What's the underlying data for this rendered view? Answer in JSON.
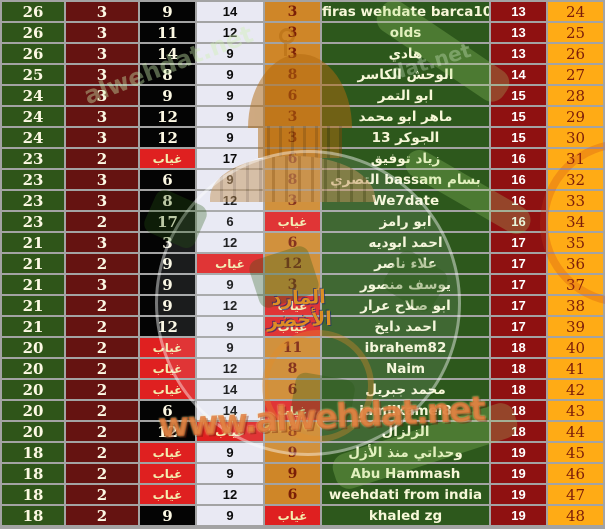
{
  "palette": {
    "row_green": "#2f5519",
    "maroon": "#651311",
    "black_col": "#040404",
    "lavender": "#e9e9f3",
    "orange_col": "#cf8628",
    "name_green": "#2d581c",
    "red_col": "#8f1111",
    "rank_orange": "#ffab15",
    "absent_red": "#df2020",
    "grid_gray": "#a3a3a3"
  },
  "watermark": {
    "site_url": "www.alwehdat.net",
    "slogan": "المارد الأخضر",
    "diagonal_text_1": "alwehdat.net",
    "diagonal_text_2": "dat.net"
  },
  "table": {
    "absent_label": "غياب",
    "rows": [
      {
        "points": "26",
        "s2": "3",
        "s3": "9",
        "s4": "14",
        "s5": "3",
        "player": "firas wehdate barca10",
        "s7": "13",
        "rank": "24"
      },
      {
        "points": "26",
        "s2": "3",
        "s3": "11",
        "s4": "12",
        "s5": "3",
        "player": "olds",
        "s7": "13",
        "rank": "25"
      },
      {
        "points": "26",
        "s2": "3",
        "s3": "14",
        "s4": "9",
        "s5": "3",
        "player": "هادي",
        "s7": "13",
        "rank": "26"
      },
      {
        "points": "25",
        "s2": "3",
        "s3": "8",
        "s4": "9",
        "s5": "8",
        "player": "الوحش الكاسر",
        "s7": "14",
        "rank": "27"
      },
      {
        "points": "24",
        "s2": "3",
        "s3": "9",
        "s4": "9",
        "s5": "6",
        "player": "ابو التمر",
        "s7": "15",
        "rank": "28"
      },
      {
        "points": "24",
        "s2": "3",
        "s3": "12",
        "s4": "9",
        "s5": "3",
        "player": "ماهر ابو محمد",
        "s7": "15",
        "rank": "29"
      },
      {
        "points": "24",
        "s2": "3",
        "s3": "12",
        "s4": "9",
        "s5": "3",
        "player": "الجوكر 13",
        "s7": "15",
        "rank": "30"
      },
      {
        "points": "23",
        "s2": "2",
        "s3": "غياب",
        "s4": "17",
        "s5": "6",
        "player": "زياد توفيق",
        "s7": "16",
        "rank": "31"
      },
      {
        "points": "23",
        "s2": "3",
        "s3": "6",
        "s4": "9",
        "s5": "8",
        "player": "التصري bassam بسام",
        "s7": "16",
        "rank": "32"
      },
      {
        "points": "23",
        "s2": "3",
        "s3": "8",
        "s4": "12",
        "s5": "3",
        "player": "We7date",
        "s7": "16",
        "rank": "33"
      },
      {
        "points": "23",
        "s2": "2",
        "s3": "17",
        "s4": "6",
        "s5": "غياب",
        "player": "ابو رامز",
        "s7": "16",
        "rank": "34"
      },
      {
        "points": "21",
        "s2": "3",
        "s3": "3",
        "s4": "12",
        "s5": "6",
        "player": "احمد ابوديه",
        "s7": "17",
        "rank": "35"
      },
      {
        "points": "21",
        "s2": "2",
        "s3": "9",
        "s4": "غياب",
        "s5": "12",
        "player": "علاء ناصر",
        "s7": "17",
        "rank": "36"
      },
      {
        "points": "21",
        "s2": "3",
        "s3": "9",
        "s4": "9",
        "s5": "3",
        "player": "يوسف منصور",
        "s7": "17",
        "rank": "37"
      },
      {
        "points": "21",
        "s2": "2",
        "s3": "9",
        "s4": "12",
        "s5": "غياب",
        "player": "ابو صلاح عرار",
        "s7": "17",
        "rank": "38"
      },
      {
        "points": "21",
        "s2": "2",
        "s3": "12",
        "s4": "9",
        "s5": "غياب",
        "player": "احمد دايخ",
        "s7": "17",
        "rank": "39"
      },
      {
        "points": "20",
        "s2": "2",
        "s3": "غياب",
        "s4": "9",
        "s5": "11",
        "player": "ibrahem82",
        "s7": "18",
        "rank": "40"
      },
      {
        "points": "20",
        "s2": "2",
        "s3": "غياب",
        "s4": "12",
        "s5": "8",
        "player": "Naim",
        "s7": "18",
        "rank": "41"
      },
      {
        "points": "20",
        "s2": "2",
        "s3": "غياب",
        "s4": "14",
        "s5": "6",
        "player": "محمد جبريل",
        "s7": "18",
        "rank": "42"
      },
      {
        "points": "20",
        "s2": "2",
        "s3": "6",
        "s4": "14",
        "s5": "غياب",
        "player": "jamilkamel8",
        "s7": "18",
        "rank": "43"
      },
      {
        "points": "20",
        "s2": "2",
        "s3": "12",
        "s4": "غياب",
        "s5": "8",
        "player": "الزلزال",
        "s7": "18",
        "rank": "44"
      },
      {
        "points": "18",
        "s2": "2",
        "s3": "غياب",
        "s4": "9",
        "s5": "9",
        "player": "وحداتي منذ الأزل",
        "s7": "19",
        "rank": "45"
      },
      {
        "points": "18",
        "s2": "2",
        "s3": "غياب",
        "s4": "9",
        "s5": "9",
        "player": "Abu Hammash",
        "s7": "19",
        "rank": "46"
      },
      {
        "points": "18",
        "s2": "2",
        "s3": "غياب",
        "s4": "12",
        "s5": "6",
        "player": "weehdati from india",
        "s7": "19",
        "rank": "47"
      },
      {
        "points": "18",
        "s2": "2",
        "s3": "9",
        "s4": "9",
        "s5": "غياب",
        "player": "khaled zg",
        "s7": "19",
        "rank": "48"
      }
    ]
  }
}
